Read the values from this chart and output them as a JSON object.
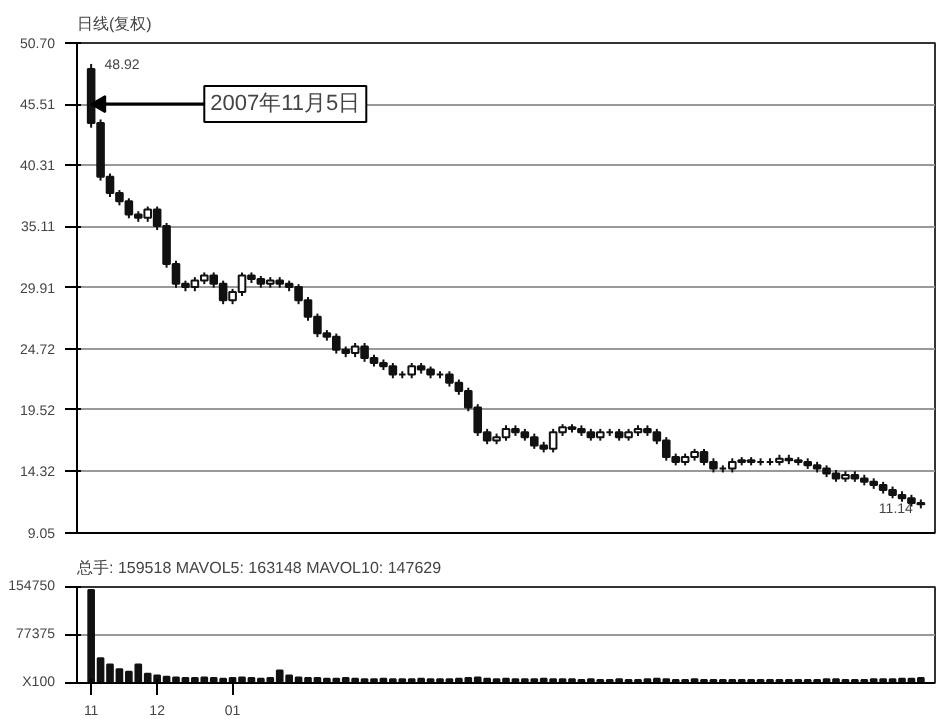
{
  "chart_data": [
    {
      "type": "candlestick",
      "title": "日线(复权)",
      "categories": [
        "11",
        null,
        null,
        null,
        null,
        null,
        null,
        "12",
        null,
        null,
        null,
        null,
        null,
        null,
        null,
        "01",
        null,
        null,
        null,
        null,
        null,
        null,
        null,
        null,
        null,
        null,
        null,
        null,
        null,
        null,
        null,
        null,
        null,
        null,
        null,
        null,
        null,
        null,
        null,
        null,
        null,
        null,
        null,
        null,
        null,
        null,
        null,
        null,
        null,
        null,
        null,
        null,
        null,
        null,
        null,
        null,
        null,
        null,
        null,
        null,
        null,
        null,
        null,
        null,
        null,
        null,
        null,
        null,
        null,
        null,
        null,
        null,
        null,
        null,
        null,
        null,
        null,
        null,
        null,
        null,
        null,
        null,
        null,
        null,
        null,
        null,
        null,
        null,
        null
      ],
      "ohlc": [
        [
          48.5,
          48.92,
          43.5,
          43.9
        ],
        [
          43.9,
          44.2,
          39.0,
          39.34
        ],
        [
          39.34,
          39.6,
          37.6,
          37.94
        ],
        [
          37.94,
          38.2,
          36.9,
          37.24
        ],
        [
          37.24,
          37.5,
          35.8,
          36.12
        ],
        [
          36.12,
          36.4,
          35.5,
          35.84
        ],
        [
          35.84,
          36.8,
          35.5,
          36.54
        ],
        [
          36.54,
          36.8,
          34.8,
          35.14
        ],
        [
          35.14,
          35.4,
          31.6,
          31.91
        ],
        [
          31.91,
          32.2,
          29.9,
          30.23
        ],
        [
          30.23,
          30.5,
          29.6,
          29.95
        ],
        [
          29.95,
          30.8,
          29.6,
          30.51
        ],
        [
          30.51,
          31.2,
          30.2,
          30.93
        ],
        [
          30.93,
          31.2,
          29.9,
          30.23
        ],
        [
          30.23,
          30.5,
          28.5,
          28.83
        ],
        [
          28.83,
          29.8,
          28.5,
          29.53
        ],
        [
          29.53,
          31.2,
          29.2,
          30.93
        ],
        [
          30.93,
          31.2,
          30.3,
          30.65
        ],
        [
          30.65,
          30.9,
          29.9,
          30.23
        ],
        [
          30.23,
          30.8,
          29.9,
          30.51
        ],
        [
          30.51,
          30.8,
          29.9,
          30.23
        ],
        [
          30.23,
          30.5,
          29.6,
          29.95
        ],
        [
          29.95,
          30.2,
          28.5,
          28.83
        ],
        [
          28.83,
          29.1,
          27.1,
          27.43
        ],
        [
          27.43,
          27.7,
          25.7,
          26.03
        ],
        [
          26.03,
          26.3,
          25.4,
          25.74
        ],
        [
          25.74,
          26.0,
          24.3,
          24.62
        ],
        [
          24.62,
          24.9,
          24.0,
          24.34
        ],
        [
          24.34,
          25.2,
          24.0,
          24.9
        ],
        [
          24.9,
          25.2,
          23.6,
          23.92
        ],
        [
          23.92,
          24.2,
          23.2,
          23.5
        ],
        [
          23.5,
          23.8,
          22.9,
          23.22
        ],
        [
          23.22,
          23.5,
          22.2,
          22.52
        ],
        [
          22.52,
          22.8,
          22.2,
          22.52
        ],
        [
          22.52,
          23.5,
          22.2,
          23.22
        ],
        [
          23.22,
          23.5,
          22.6,
          22.94
        ],
        [
          22.94,
          23.2,
          22.2,
          22.52
        ],
        [
          22.52,
          22.8,
          22.2,
          22.52
        ],
        [
          22.52,
          22.8,
          21.5,
          21.82
        ],
        [
          21.82,
          22.1,
          20.8,
          21.12
        ],
        [
          21.12,
          21.4,
          19.4,
          19.72
        ],
        [
          19.72,
          20.0,
          17.3,
          17.61
        ],
        [
          17.61,
          17.9,
          16.6,
          16.91
        ],
        [
          16.91,
          17.5,
          16.6,
          17.19
        ],
        [
          17.19,
          18.2,
          16.9,
          17.89
        ],
        [
          17.89,
          18.2,
          17.3,
          17.61
        ],
        [
          17.61,
          17.9,
          16.9,
          17.19
        ],
        [
          17.19,
          17.5,
          16.2,
          16.49
        ],
        [
          16.49,
          16.8,
          15.9,
          16.21
        ],
        [
          16.21,
          17.9,
          15.9,
          17.61
        ],
        [
          17.61,
          18.3,
          17.3,
          18.03
        ],
        [
          18.03,
          18.3,
          17.6,
          17.89
        ],
        [
          17.89,
          18.2,
          17.3,
          17.61
        ],
        [
          17.61,
          17.9,
          16.9,
          17.19
        ],
        [
          17.19,
          17.9,
          16.9,
          17.61
        ],
        [
          17.61,
          17.9,
          17.3,
          17.61
        ],
        [
          17.61,
          17.9,
          16.9,
          17.19
        ],
        [
          17.19,
          17.9,
          16.9,
          17.61
        ],
        [
          17.61,
          18.2,
          17.3,
          17.89
        ],
        [
          17.89,
          18.2,
          17.3,
          17.61
        ],
        [
          17.61,
          17.9,
          16.6,
          16.91
        ],
        [
          16.91,
          17.2,
          15.2,
          15.51
        ],
        [
          15.51,
          15.8,
          14.8,
          15.09
        ],
        [
          15.09,
          15.8,
          14.8,
          15.51
        ],
        [
          15.51,
          16.2,
          15.2,
          15.93
        ],
        [
          15.93,
          16.2,
          14.8,
          15.09
        ],
        [
          15.09,
          15.4,
          14.2,
          14.53
        ],
        [
          14.53,
          14.8,
          14.2,
          14.53
        ],
        [
          14.53,
          15.4,
          14.2,
          15.09
        ],
        [
          15.09,
          15.5,
          14.8,
          15.23
        ],
        [
          15.23,
          15.5,
          14.8,
          15.09
        ],
        [
          15.09,
          15.4,
          14.8,
          15.09
        ],
        [
          15.09,
          15.4,
          14.8,
          15.09
        ],
        [
          15.09,
          15.7,
          14.8,
          15.37
        ],
        [
          15.37,
          15.7,
          14.9,
          15.23
        ],
        [
          15.23,
          15.5,
          14.8,
          15.09
        ],
        [
          15.09,
          15.4,
          14.5,
          14.81
        ],
        [
          14.81,
          15.1,
          14.2,
          14.53
        ],
        [
          14.53,
          14.8,
          13.8,
          14.11
        ],
        [
          14.11,
          14.4,
          13.4,
          13.69
        ],
        [
          13.69,
          14.3,
          13.4,
          13.97
        ],
        [
          13.97,
          14.3,
          13.4,
          13.69
        ],
        [
          13.69,
          14.0,
          13.1,
          13.41
        ],
        [
          13.41,
          13.7,
          12.8,
          13.13
        ],
        [
          13.13,
          13.4,
          12.4,
          12.71
        ],
        [
          12.71,
          13.0,
          12.0,
          12.29
        ],
        [
          12.29,
          12.6,
          11.7,
          12.01
        ],
        [
          12.01,
          12.3,
          11.3,
          11.59
        ],
        [
          11.59,
          11.9,
          11.14,
          11.5
        ]
      ],
      "color": "#111111",
      "ylim": [
        9.05,
        50.7
      ],
      "yticks": [
        {
          "value": 9.05,
          "label": "9.05"
        },
        {
          "value": 14.32,
          "label": "14.32"
        },
        {
          "value": 19.52,
          "label": "19.52"
        },
        {
          "value": 24.72,
          "label": "24.72"
        },
        {
          "value": 29.91,
          "label": "29.91"
        },
        {
          "value": 35.11,
          "label": "35.11"
        },
        {
          "value": 40.31,
          "label": "40.31"
        },
        {
          "value": 45.51,
          "label": "45.51"
        },
        {
          "value": 50.7,
          "label": "50.70"
        }
      ],
      "grid": "y",
      "tick_labels": "y",
      "annotations": [
        {
          "text": "48.92",
          "x": "11",
          "y": 48.92
        },
        {
          "text": "2007年11月5日",
          "x": "11",
          "y": 45.51
        },
        "11.14"
      ]
    },
    {
      "type": "bar",
      "title": "总手: 159518 MAVOL5: 163148 MAVOL10: 147629",
      "categories": [
        "11",
        null,
        null,
        null,
        null,
        null,
        null,
        "12",
        null,
        null,
        null,
        null,
        null,
        null,
        null,
        "01",
        null,
        null,
        null,
        null,
        null,
        null,
        null,
        null,
        null,
        null,
        null,
        null,
        null,
        null,
        null,
        null,
        null,
        null,
        null,
        null,
        null,
        null,
        null,
        null,
        null,
        null,
        null,
        null,
        null,
        null,
        null,
        null,
        null,
        null,
        null,
        null,
        null,
        null,
        null,
        null,
        null,
        null,
        null,
        null,
        null,
        null,
        null,
        null,
        null,
        null,
        null,
        null,
        null,
        null,
        null,
        null,
        null,
        null,
        null,
        null,
        null,
        null,
        null,
        null,
        null,
        null,
        null,
        null,
        null,
        null,
        null,
        null,
        null
      ],
      "values": [
        150000,
        40000,
        30000,
        22000,
        18000,
        30000,
        15000,
        12000,
        10000,
        9000,
        8000,
        8000,
        9000,
        8000,
        7000,
        8000,
        9000,
        8000,
        7000,
        8000,
        20000,
        12000,
        9000,
        8000,
        8000,
        7000,
        7000,
        8000,
        7000,
        6000,
        6000,
        7000,
        6000,
        6000,
        6000,
        7000,
        6000,
        6000,
        6000,
        7000,
        8000,
        9000,
        7000,
        6000,
        7000,
        6000,
        6000,
        6000,
        7000,
        6000,
        6000,
        6000,
        5000,
        6000,
        5000,
        5000,
        6000,
        5000,
        5000,
        6000,
        7000,
        6000,
        5000,
        5000,
        6000,
        5000,
        5000,
        5000,
        5000,
        5000,
        5000,
        5000,
        5000,
        5000,
        5000,
        5000,
        5000,
        5000,
        6000,
        6000,
        5000,
        5000,
        5000,
        6000,
        6000,
        6000,
        7000,
        7000,
        8000
      ],
      "color": "#111111",
      "ylim": [
        0,
        154750
      ],
      "yticks": [
        {
          "value": 0,
          "label": "X100"
        },
        77375,
        154750
      ],
      "grid": "y"
    }
  ]
}
